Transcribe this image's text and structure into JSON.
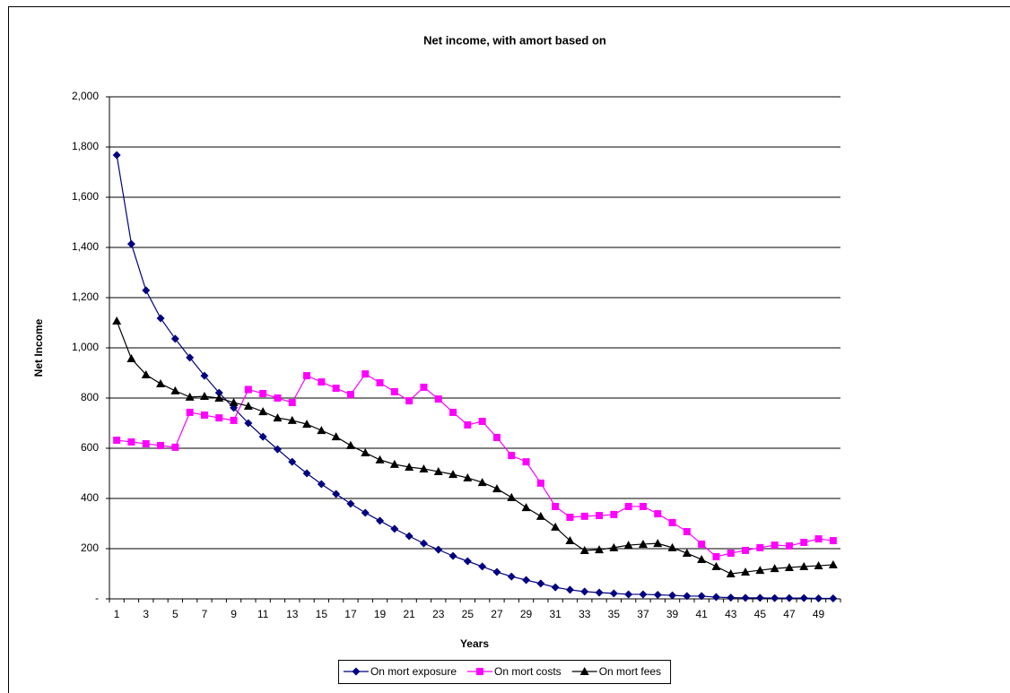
{
  "chart_data": {
    "type": "line",
    "title": "Net income, with amort based on",
    "x_label": "Years",
    "y_label": "Net Income",
    "categories": [
      1,
      null,
      3,
      null,
      5,
      null,
      7,
      null,
      9,
      null,
      11,
      null,
      13,
      null,
      15,
      null,
      17,
      null,
      19,
      null,
      21,
      null,
      23,
      null,
      25,
      null,
      27,
      null,
      29,
      null,
      31,
      null,
      33,
      null,
      35,
      null,
      37,
      null,
      39,
      null,
      41,
      null,
      43,
      null,
      45,
      null,
      47,
      null,
      49,
      null
    ],
    "ylim": [
      0,
      2000
    ],
    "yticks": [
      {
        "value": 0,
        "label": "-"
      },
      200,
      400,
      600,
      800,
      {
        "value": 1000,
        "label": "1,000"
      },
      {
        "value": 1200,
        "label": "1,200"
      },
      {
        "value": 1400,
        "label": "1,400"
      },
      {
        "value": 1600,
        "label": "1,600"
      },
      {
        "value": 1800,
        "label": "1,800"
      },
      {
        "value": 2000,
        "label": "2,000"
      }
    ],
    "grid": true,
    "legend": "bottom",
    "series": [
      {
        "name": "On mort exposure",
        "color": "#000080",
        "marker": "diamond",
        "values": [
          1768,
          1414,
          1229,
          1118,
          1036,
          961,
          889,
          821,
          761,
          700,
          646,
          596,
          546,
          500,
          457,
          418,
          379,
          343,
          311,
          279,
          250,
          221,
          196,
          171,
          150,
          129,
          107,
          89,
          75,
          61,
          46,
          36,
          29,
          25,
          22,
          18,
          18,
          16,
          14,
          11,
          11,
          7,
          5,
          4,
          4,
          3,
          3,
          3,
          2,
          2
        ]
      },
      {
        "name": "On mort costs",
        "color": "#ff00ff",
        "marker": "square",
        "values": [
          632,
          625,
          618,
          611,
          604,
          743,
          732,
          721,
          711,
          834,
          818,
          800,
          782,
          889,
          864,
          839,
          814,
          896,
          861,
          825,
          789,
          843,
          796,
          743,
          693,
          707,
          643,
          571,
          546,
          461,
          368,
          325,
          329,
          332,
          336,
          368,
          368,
          339,
          304,
          268,
          218,
          168,
          182,
          193,
          204,
          214,
          211,
          225,
          239,
          232
        ]
      },
      {
        "name": "On mort fees",
        "color": "#000000",
        "marker": "triangle",
        "values": [
          1107,
          957,
          893,
          857,
          829,
          804,
          807,
          800,
          782,
          768,
          746,
          721,
          711,
          696,
          671,
          646,
          611,
          582,
          554,
          536,
          525,
          518,
          507,
          496,
          482,
          464,
          439,
          404,
          364,
          329,
          286,
          232,
          193,
          196,
          204,
          214,
          218,
          221,
          204,
          182,
          157,
          129,
          100,
          107,
          114,
          121,
          125,
          129,
          132,
          136
        ]
      }
    ]
  }
}
